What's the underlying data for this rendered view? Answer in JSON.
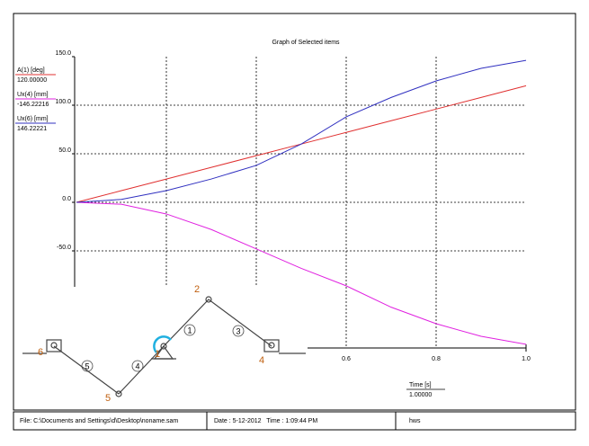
{
  "chart_data": {
    "type": "line",
    "title": "Graph of Selected items",
    "x_label": "Time [s]",
    "x_cursor": {
      "value": 1,
      "label": "1.00000"
    },
    "x": [
      0,
      0.1,
      0.2,
      0.3,
      0.4,
      0.5,
      0.6,
      0.7,
      0.8,
      0.9,
      1.0
    ],
    "series": [
      {
        "name": "A(1) [deg]",
        "color": "#e03030",
        "legend_value": "120.00000",
        "values": [
          0,
          12,
          24,
          36,
          48,
          60,
          72,
          84,
          96,
          108,
          120
        ]
      },
      {
        "name": "Ux(4) [mm]",
        "color": "#e020e0",
        "legend_value": "-146.22216",
        "values": [
          0,
          -2,
          -12,
          -28,
          -48,
          -68,
          -86,
          -108,
          -125,
          -138,
          -146.22216
        ]
      },
      {
        "name": "Ux(6) [mm]",
        "color": "#3030c0",
        "legend_value": "146.22221",
        "values": [
          0,
          3,
          12,
          24,
          38,
          60,
          88,
          108,
          125,
          138,
          146.22221
        ]
      }
    ],
    "xlim": [
      0,
      1.0
    ],
    "xticks": [
      0.2,
      0.4,
      {
        "value": 0.6,
        "label": "0.6"
      },
      {
        "value": 0.8,
        "label": "0.8"
      },
      {
        "value": 1,
        "label": "1.0"
      }
    ],
    "ylim": [
      -150,
      150
    ],
    "yticks": [
      {
        "value": 150,
        "label": "150.0"
      },
      {
        "value": 100,
        "label": "100.0"
      },
      {
        "value": 50,
        "label": "50.0"
      },
      {
        "value": 0,
        "label": "0.0"
      },
      {
        "value": -50,
        "label": "-50.0"
      }
    ],
    "grid": true
  },
  "diagram": {
    "joint_labels": [
      "1",
      "2",
      "4",
      "5",
      "6"
    ],
    "link_labels": [
      "1",
      "3",
      "4",
      "5"
    ]
  },
  "footer": {
    "file": "File: C:\\Documents and Settings\\d\\Desktop\\noname.sam",
    "datetime": "Date : 5-12-2012   Time : 1:09:44 PM",
    "user": "hws"
  }
}
